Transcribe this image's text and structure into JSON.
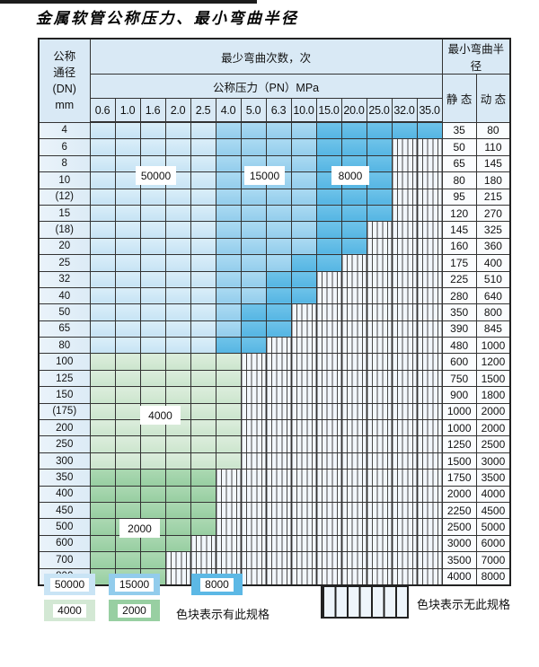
{
  "page_title": "金属软管公称压力、最小弯曲半径",
  "table": {
    "dn_header_lines": [
      "公称",
      "通径",
      "(DN)",
      "mm"
    ],
    "bend_times_header": "最少弯曲次数，次",
    "pressure_header": "公称压力（PN）MPa",
    "radius_header": "最小弯曲半径",
    "static_header": "静 态",
    "dynamic_header": "动 态",
    "pressure_columns": [
      "0.6",
      "1.0",
      "1.6",
      "2.0",
      "2.5",
      "4.0",
      "5.0",
      "6.3",
      "10.0",
      "15.0",
      "20.0",
      "25.0",
      "32.0",
      "35.0"
    ],
    "rows": [
      {
        "dn": "4",
        "last": 13,
        "band": "blue",
        "static": "35",
        "dynamic": "80"
      },
      {
        "dn": "6",
        "last": 11,
        "band": "blue",
        "static": "50",
        "dynamic": "110"
      },
      {
        "dn": "8",
        "last": 11,
        "band": "blue",
        "static": "65",
        "dynamic": "145"
      },
      {
        "dn": "10",
        "last": 11,
        "band": "blue",
        "static": "80",
        "dynamic": "180"
      },
      {
        "dn": "(12)",
        "last": 11,
        "band": "blue",
        "static": "95",
        "dynamic": "215"
      },
      {
        "dn": "15",
        "last": 11,
        "band": "blue",
        "static": "120",
        "dynamic": "270"
      },
      {
        "dn": "(18)",
        "last": 10,
        "band": "blue",
        "static": "145",
        "dynamic": "325"
      },
      {
        "dn": "20",
        "last": 10,
        "band": "blue",
        "static": "160",
        "dynamic": "360"
      },
      {
        "dn": "25",
        "last": 9,
        "band": "blue",
        "static": "175",
        "dynamic": "400"
      },
      {
        "dn": "32",
        "last": 8,
        "band": "blue",
        "static": "225",
        "dynamic": "510"
      },
      {
        "dn": "40",
        "last": 8,
        "band": "blue",
        "static": "280",
        "dynamic": "640"
      },
      {
        "dn": "50",
        "last": 7,
        "band": "blue",
        "static": "350",
        "dynamic": "800"
      },
      {
        "dn": "65",
        "last": 7,
        "band": "blue",
        "static": "390",
        "dynamic": "845"
      },
      {
        "dn": "80",
        "last": 6,
        "band": "blue",
        "static": "480",
        "dynamic": "1000"
      },
      {
        "dn": "100",
        "last": 5,
        "band": "green-4000",
        "static": "600",
        "dynamic": "1200"
      },
      {
        "dn": "125",
        "last": 5,
        "band": "green-4000",
        "static": "750",
        "dynamic": "1500"
      },
      {
        "dn": "150",
        "last": 5,
        "band": "green-4000",
        "static": "900",
        "dynamic": "1800"
      },
      {
        "dn": "(175)",
        "last": 5,
        "band": "green-4000",
        "static": "1000",
        "dynamic": "2000"
      },
      {
        "dn": "200",
        "last": 5,
        "band": "green-4000",
        "static": "1000",
        "dynamic": "2000"
      },
      {
        "dn": "250",
        "last": 5,
        "band": "green-4000",
        "static": "1250",
        "dynamic": "2500"
      },
      {
        "dn": "300",
        "last": 5,
        "band": "green-4000",
        "static": "1500",
        "dynamic": "3000"
      },
      {
        "dn": "350",
        "last": 4,
        "band": "green-2000",
        "static": "1750",
        "dynamic": "3500"
      },
      {
        "dn": "400",
        "last": 4,
        "band": "green-2000",
        "static": "2000",
        "dynamic": "4000"
      },
      {
        "dn": "450",
        "last": 4,
        "band": "green-2000",
        "static": "2250",
        "dynamic": "4500"
      },
      {
        "dn": "500",
        "last": 4,
        "band": "green-2000",
        "static": "2500",
        "dynamic": "5000"
      },
      {
        "dn": "600",
        "last": 3,
        "band": "green-2000",
        "static": "3000",
        "dynamic": "6000"
      },
      {
        "dn": "700",
        "last": 2,
        "band": "green-2000",
        "static": "3500",
        "dynamic": "7000"
      },
      {
        "dn": "800",
        "last": 2,
        "band": "green-2000",
        "static": "4000",
        "dynamic": "8000"
      }
    ]
  },
  "overlay_labels": {
    "l50000": "50000",
    "l15000": "15000",
    "l8000": "8000",
    "l4000": "4000",
    "l2000": "2000"
  },
  "legend": {
    "swatches": [
      {
        "label": "50000",
        "color": "#c9e4f5"
      },
      {
        "label": "15000",
        "color": "#92ccec"
      },
      {
        "label": "8000",
        "color": "#5cb8e5"
      },
      {
        "label": "4000",
        "color": "#d3e8d4"
      },
      {
        "label": "2000",
        "color": "#98cfa2"
      }
    ],
    "exists_text": "色块表示有此规格",
    "not_exists_text": "色块表示无此规格"
  },
  "colors": {
    "blue_50000": "#c9e4f5",
    "blue_15000": "#92ccec",
    "blue_8000": "#5cb8e5",
    "green_4000": "#d3e8d4",
    "green_2000": "#98cfa2",
    "stripe_line": "#4a4a4a",
    "grid_line": "#333333"
  }
}
